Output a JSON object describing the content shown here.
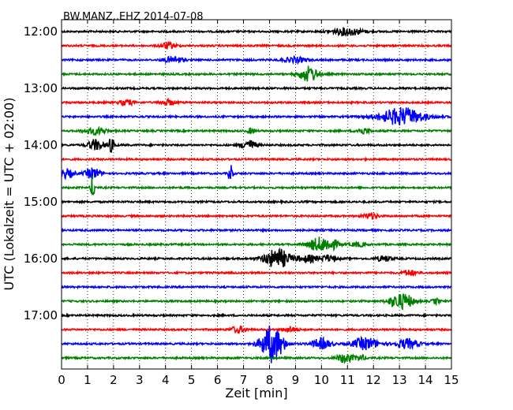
{
  "chart_data": {
    "type": "line",
    "title": "BW.MANZ..EHZ 2014-07-08",
    "xlabel": "Zeit  [min]",
    "ylabel": "UTC (Lokalzeit = UTC + 02:00)",
    "xlim": [
      0,
      15
    ],
    "x_ticks": [
      "0",
      "1",
      "2",
      "3",
      "4",
      "5",
      "6",
      "7",
      "8",
      "9",
      "10",
      "11",
      "12",
      "13",
      "14",
      "15"
    ],
    "y_ticks": [
      "12:00",
      "13:00",
      "14:00",
      "15:00",
      "16:00",
      "17:00"
    ],
    "grid": true,
    "trace_colors": [
      "#000000",
      "#ff0000",
      "#0000ff",
      "#008000"
    ],
    "traces": [
      {
        "start": "12:00",
        "bursts": [
          [
            11,
            0.4,
            0.7
          ]
        ]
      },
      {
        "start": "12:15",
        "bursts": [
          [
            4.1,
            0.2,
            0.6
          ]
        ]
      },
      {
        "start": "12:30",
        "bursts": [
          [
            4.3,
            0.25,
            0.6
          ],
          [
            9.0,
            0.3,
            0.5
          ]
        ]
      },
      {
        "start": "12:45",
        "bursts": [
          [
            9.5,
            0.25,
            1.4
          ]
        ]
      },
      {
        "start": "13:00",
        "bursts": []
      },
      {
        "start": "13:15",
        "bursts": [
          [
            2.5,
            0.2,
            0.5
          ],
          [
            4.1,
            0.2,
            0.5
          ]
        ]
      },
      {
        "start": "13:30",
        "bursts": [
          [
            13.1,
            0.6,
            1.6
          ]
        ]
      },
      {
        "start": "13:45",
        "bursts": [
          [
            1.3,
            0.3,
            0.6
          ],
          [
            7.3,
            0.1,
            0.5
          ],
          [
            11.6,
            0.2,
            0.5
          ]
        ]
      },
      {
        "start": "14:00",
        "bursts": [
          [
            1.3,
            0.2,
            1.0
          ],
          [
            1.9,
            0.1,
            1.2
          ],
          [
            7.2,
            0.2,
            0.9
          ]
        ]
      },
      {
        "start": "14:15",
        "bursts": []
      },
      {
        "start": "14:30",
        "bursts": [
          [
            0.2,
            0.2,
            0.8
          ],
          [
            1.2,
            0.2,
            1.0
          ],
          [
            6.5,
            0.05,
            2.2
          ]
        ]
      },
      {
        "start": "14:45",
        "bursts": [
          [
            1.2,
            0.05,
            2.6
          ]
        ]
      },
      {
        "start": "15:00",
        "bursts": []
      },
      {
        "start": "15:15",
        "bursts": [
          [
            11.9,
            0.2,
            0.5
          ]
        ]
      },
      {
        "start": "15:30",
        "bursts": []
      },
      {
        "start": "15:45",
        "bursts": [
          [
            9.9,
            0.3,
            1.2
          ],
          [
            10.4,
            0.2,
            0.7
          ],
          [
            11.4,
            0.2,
            0.4
          ]
        ]
      },
      {
        "start": "16:00",
        "bursts": [
          [
            8.3,
            0.35,
            1.8
          ],
          [
            9.5,
            0.3,
            0.6
          ],
          [
            10.3,
            0.2,
            0.6
          ],
          [
            12.4,
            0.2,
            0.5
          ]
        ]
      },
      {
        "start": "16:15",
        "bursts": [
          [
            13.4,
            0.2,
            0.5
          ]
        ]
      },
      {
        "start": "16:30",
        "bursts": []
      },
      {
        "start": "16:45",
        "bursts": [
          [
            12.9,
            0.25,
            1.1
          ],
          [
            13.3,
            0.2,
            0.9
          ],
          [
            14.4,
            0.1,
            0.5
          ]
        ]
      },
      {
        "start": "17:00",
        "bursts": []
      },
      {
        "start": "17:15",
        "bursts": [
          [
            6.8,
            0.2,
            0.6
          ],
          [
            8.8,
            0.2,
            0.5
          ]
        ]
      },
      {
        "start": "17:30",
        "bursts": [
          [
            8.1,
            0.3,
            3.4
          ],
          [
            10.0,
            0.25,
            1.0
          ],
          [
            11.7,
            0.35,
            1.1
          ],
          [
            13.3,
            0.3,
            0.9
          ]
        ]
      },
      {
        "start": "17:45",
        "bursts": [
          [
            10.9,
            0.2,
            0.9
          ],
          [
            11.5,
            0.15,
            0.5
          ]
        ]
      }
    ]
  }
}
